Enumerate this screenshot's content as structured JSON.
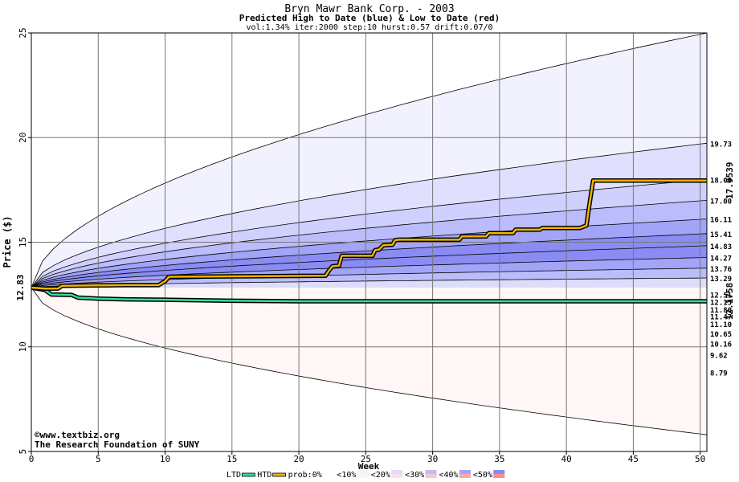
{
  "chart_data": {
    "type": "area",
    "title": "Bryn Mawr Bank Corp. - 2003",
    "subtitle": "Predicted High to Date (blue) &  Low to Date (red)",
    "params": "vol:1.34% iter:2000 step:10 hurst:0.57 drift:0.07/0",
    "xlabel": "Week",
    "ylabel": "Price ($)",
    "xlim": [
      0,
      50.5
    ],
    "ylim": [
      5,
      25
    ],
    "x_ticks": [
      0,
      5,
      10,
      15,
      20,
      25,
      30,
      35,
      40,
      45,
      50
    ],
    "y_ticks": [
      5,
      10,
      15,
      20,
      25
    ],
    "grid": true,
    "start_price": 12.83,
    "start_label": "12.83",
    "right_labels": [
      "19.73",
      "18.00",
      "17.00",
      "16.11",
      "15.41",
      "14.83",
      "14.27",
      "13.76",
      "13.29",
      "12.51",
      "12.15",
      "11.80",
      "11.47",
      "11.10",
      "10.65",
      "10.16",
      "9.62",
      "8.79"
    ],
    "htd_end_label": "17.9539",
    "ltd_end_label": "12.1758",
    "colors": {
      "htd": "#f0b400",
      "ltd": "#30e0a0",
      "htd_label": "#a07000",
      "ltd_label": "#00a070",
      "start_label": "#008040",
      "credit": "#000080"
    },
    "high_bands": [
      {
        "end": 25,
        "color": "#f2f2ff"
      },
      {
        "end": 19.73,
        "color": "#e0e0fe"
      },
      {
        "end": 18.0,
        "color": "#cfd0fd"
      },
      {
        "end": 17.0,
        "color": "#bbbcfb"
      },
      {
        "end": 16.11,
        "color": "#a2a4f8"
      },
      {
        "end": 15.41,
        "color": "#8a8cf4"
      },
      {
        "end": 14.83,
        "color": "#8a8cf4"
      },
      {
        "end": 14.27,
        "color": "#a2a4f8"
      },
      {
        "end": 13.76,
        "color": "#bbbcfb"
      },
      {
        "end": 13.29,
        "color": "#dcdcfb"
      }
    ],
    "low_bands": [
      {
        "end": 12.51,
        "color": "#fff4f4"
      },
      {
        "end": 12.15,
        "color": "#ffd8d8"
      },
      {
        "end": 11.8,
        "color": "#ffc4c4"
      },
      {
        "end": 11.47,
        "color": "#ffa8a8"
      },
      {
        "end": 11.1,
        "color": "#ff8c8c"
      },
      {
        "end": 10.65,
        "color": "#ffa8a8"
      },
      {
        "end": 10.16,
        "color": "#ffc4c4"
      },
      {
        "end": 9.62,
        "color": "#ffe0e0"
      },
      {
        "end": 8.79,
        "color": "#ffeeee"
      },
      {
        "end": 5.8,
        "color": "#fff6f6"
      }
    ],
    "htd_series": {
      "name": "HTD",
      "x": [
        0,
        1,
        2,
        2.3,
        7,
        9.5,
        9.7,
        10,
        10.3,
        22,
        22.2,
        22.5,
        23,
        23.2,
        25.5,
        25.7,
        26,
        26.3,
        27,
        27.2,
        27.5,
        32,
        32.2,
        34,
        34.2,
        36,
        36.2,
        38,
        38.2,
        41,
        41.5,
        41.7,
        42,
        50.5
      ],
      "y": [
        12.83,
        12.78,
        12.79,
        12.92,
        12.95,
        12.95,
        13.02,
        13.14,
        13.35,
        13.4,
        13.6,
        13.85,
        13.88,
        14.35,
        14.35,
        14.62,
        14.65,
        14.85,
        14.88,
        15.1,
        15.12,
        15.12,
        15.28,
        15.28,
        15.43,
        15.43,
        15.6,
        15.6,
        15.68,
        15.68,
        15.8,
        16.7,
        17.95,
        17.95
      ]
    },
    "ltd_series": {
      "name": "LTD",
      "x": [
        0,
        1,
        1.5,
        3,
        3.5,
        5,
        7,
        10,
        15,
        20,
        30,
        40,
        50.5
      ],
      "y": [
        12.83,
        12.72,
        12.5,
        12.48,
        12.35,
        12.3,
        12.27,
        12.25,
        12.2,
        12.18,
        12.18,
        12.18,
        12.18
      ]
    },
    "credit_line1": "©www.textbiz.org",
    "credit_line2": "The Research Foundation of SUNY",
    "legend": [
      {
        "label": "LTD",
        "kind": "line",
        "color": "#30e0a0"
      },
      {
        "label": "HTD",
        "kind": "line",
        "color": "#f0b400"
      },
      {
        "label": "prob:0%",
        "kind": "box2",
        "c1": "#ffffff",
        "c2": "#ffffff"
      },
      {
        "label": "<10%",
        "kind": "box2",
        "c1": "#f2f2ff",
        "c2": "#fff4f4"
      },
      {
        "label": "<20%",
        "kind": "box2",
        "c1": "#dcdcfb",
        "c2": "#ffe0e0"
      },
      {
        "label": "<30%",
        "kind": "box2",
        "c1": "#bbbcfb",
        "c2": "#ffc4c4"
      },
      {
        "label": "<40%",
        "kind": "box2",
        "c1": "#a2a4f8",
        "c2": "#ffa8a8"
      },
      {
        "label": "<50%",
        "kind": "box2",
        "c1": "#8a8cf4",
        "c2": "#ff8c8c"
      }
    ]
  }
}
